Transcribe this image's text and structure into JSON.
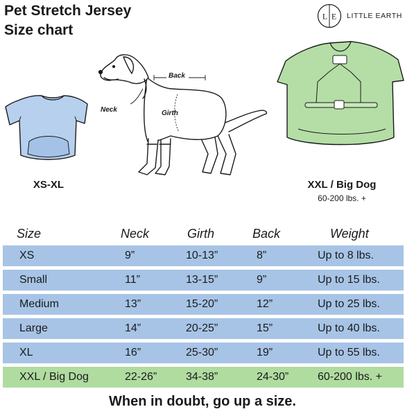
{
  "header": {
    "title_line1": "Pet Stretch Jersey",
    "title_line2": "Size chart"
  },
  "brand": {
    "logo_left": "L",
    "logo_right": "E",
    "name": "LITTLE EARTH"
  },
  "illustrations": {
    "small_shirt_label": "XS-XL",
    "big_shirt_label": "XXL / Big Dog",
    "big_shirt_sublabel": "60-200 lbs. +",
    "dog_labels": {
      "back": "Back",
      "neck": "Neck",
      "girth": "Girth"
    }
  },
  "colors": {
    "blue_row": "#a7c4e6",
    "green_row": "#b0dca0",
    "small_shirt": "#b6d0ee",
    "big_shirt": "#b4dea6"
  },
  "table": {
    "headers": [
      "Size",
      "Neck",
      "Girth",
      "Back",
      "Weight"
    ],
    "rows": [
      {
        "size": "XS",
        "neck": "9”",
        "girth": "10-13”",
        "back": "8”",
        "weight": "Up to 8 lbs."
      },
      {
        "size": "Small",
        "neck": "11”",
        "girth": "13-15”",
        "back": "9”",
        "weight": "Up to 15 lbs."
      },
      {
        "size": "Medium",
        "neck": "13”",
        "girth": "15-20”",
        "back": "12”",
        "weight": "Up to 25 lbs."
      },
      {
        "size": "Large",
        "neck": "14”",
        "girth": "20-25”",
        "back": "15”",
        "weight": "Up to 40 lbs."
      },
      {
        "size": "XL",
        "neck": "16”",
        "girth": "25-30”",
        "back": "19”",
        "weight": "Up to 55 lbs."
      },
      {
        "size": "XXL / Big Dog",
        "neck": "22-26”",
        "girth": "34-38”",
        "back": "24-30”",
        "weight": "60-200 lbs. +"
      }
    ]
  },
  "footer": {
    "note": "When in doubt, go up a size."
  }
}
